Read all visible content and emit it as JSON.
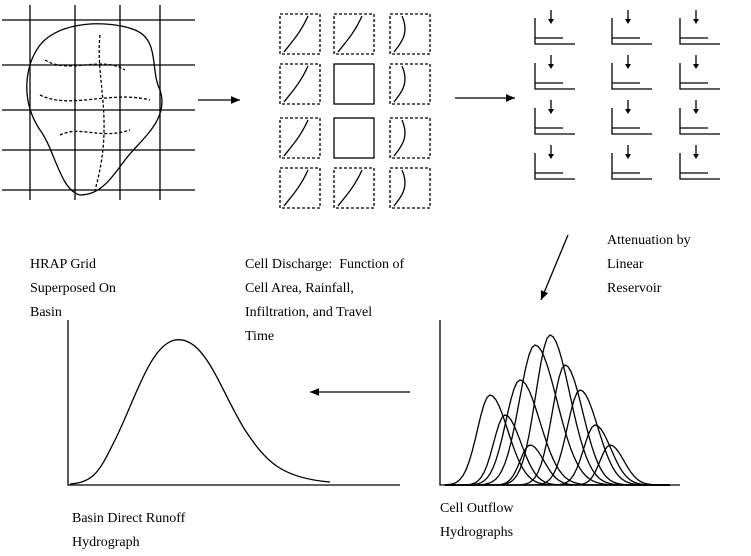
{
  "nodes": [
    {
      "label": [
        "HRAP Grid",
        "Superposed On",
        "Basin"
      ]
    },
    {
      "label": [
        "Cell Discharge:  Function of",
        "Cell Area, Rainfall,",
        "Infiltration, and Travel",
        "Time"
      ]
    },
    {
      "label": [
        "Attenuation by",
        "Linear",
        "Reservoir"
      ]
    },
    {
      "label": [
        "Cell Outflow",
        "Hydrographs"
      ]
    },
    {
      "label": [
        "Basin Direct Runoff",
        "Hydrograph"
      ]
    }
  ]
}
